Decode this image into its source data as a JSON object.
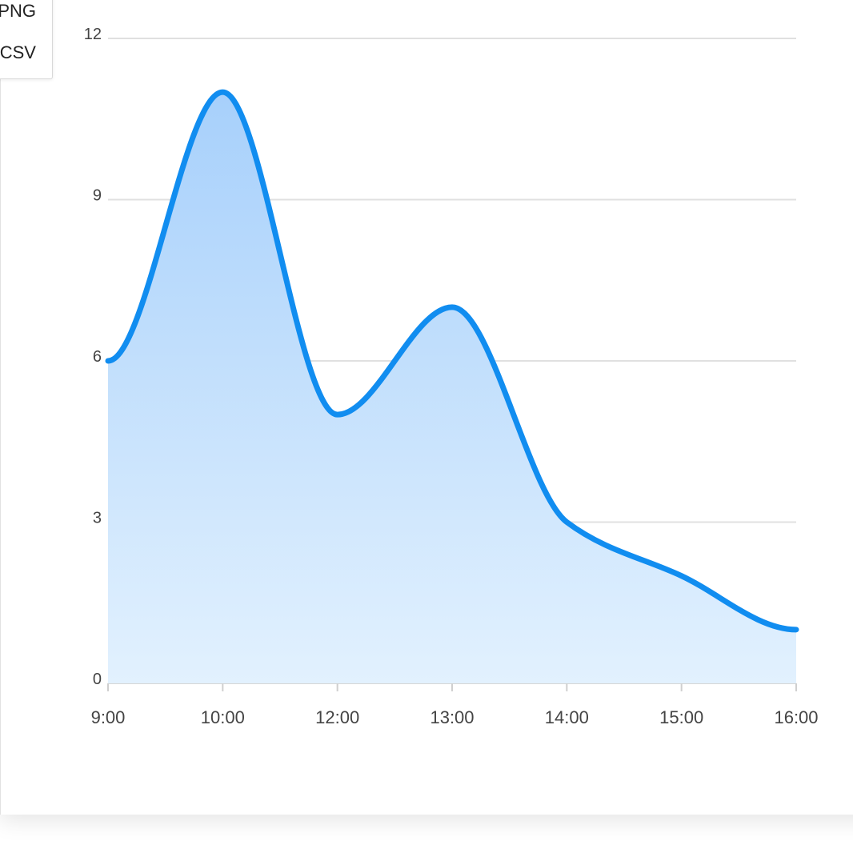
{
  "export_menu": {
    "items": [
      {
        "label": "PNG"
      },
      {
        "label": "CSV"
      }
    ]
  },
  "colors": {
    "line": "#118DF0",
    "fill_top": "#A7D0FB",
    "fill_bottom": "#E2F1FE",
    "grid": "#e0e0e0",
    "text": "#444444"
  },
  "chart_data": {
    "type": "area",
    "categories": [
      "9:00",
      "10:00",
      "12:00",
      "13:00",
      "14:00",
      "15:00",
      "16:00"
    ],
    "series": [
      {
        "values": [
          6,
          11,
          5,
          7,
          3,
          2,
          1
        ]
      }
    ],
    "yticks": [
      0,
      3,
      6,
      9,
      12
    ],
    "ylim": [
      0,
      12
    ],
    "title": "",
    "xlabel": "",
    "ylabel": "",
    "grid": true,
    "legend": "none",
    "smooth": true
  }
}
